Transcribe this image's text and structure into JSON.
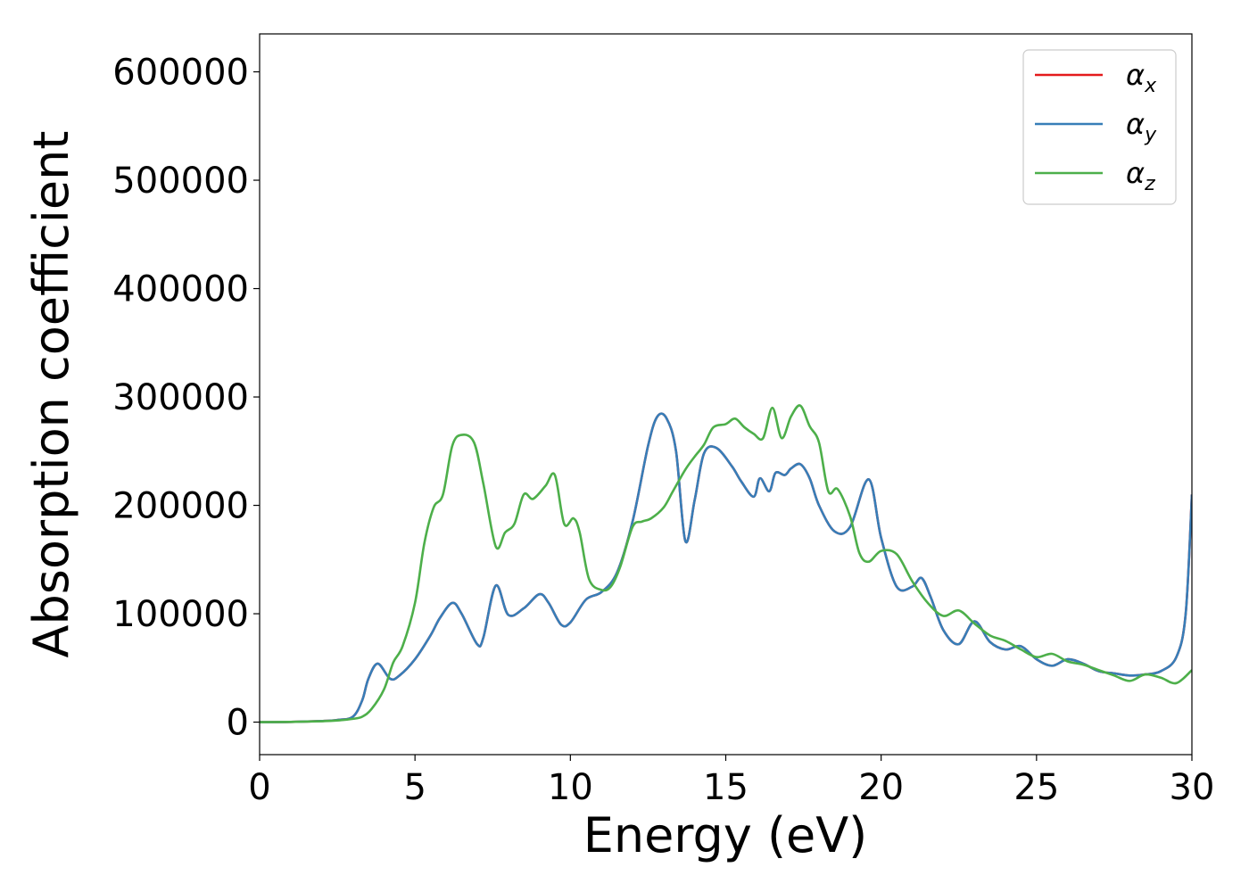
{
  "chart_data": {
    "type": "line",
    "title": "",
    "xlabel": "Energy (eV)",
    "ylabel": "Absorption coefficient",
    "xlim": [
      0,
      30
    ],
    "ylim": [
      -30000,
      635000
    ],
    "xticks": [
      0,
      5,
      10,
      15,
      20,
      25,
      30
    ],
    "yticks": [
      0,
      100000,
      200000,
      300000,
      400000,
      500000,
      600000
    ],
    "xtick_labels": [
      "0",
      "5",
      "10",
      "15",
      "20",
      "25",
      "30"
    ],
    "ytick_labels": [
      "0",
      "100000",
      "200000",
      "300000",
      "400000",
      "500000",
      "600000"
    ],
    "grid": false,
    "legend_position": "top-right",
    "series": [
      {
        "name": "α",
        "subscript": "x",
        "color": "#e41a1c",
        "x": [
          0,
          1,
          2,
          2.5,
          3,
          3.3,
          3.5,
          3.8,
          4.2,
          4.5,
          5,
          5.5,
          5.8,
          6.2,
          6.5,
          7,
          7.2,
          7.6,
          8,
          8.5,
          9,
          9.3,
          9.7,
          10,
          10.5,
          11,
          11.5,
          12,
          12.5,
          12.8,
          13.1,
          13.4,
          13.7,
          14,
          14.3,
          14.7,
          15.2,
          15.5,
          15.9,
          16.1,
          16.4,
          16.6,
          16.9,
          17.1,
          17.4,
          17.7,
          18,
          18.5,
          19,
          19.6,
          20,
          20.5,
          21,
          21.3,
          21.6,
          22,
          22.5,
          23,
          23.5,
          24,
          24.5,
          25,
          25.5,
          26,
          26.5,
          27,
          27.5,
          28,
          28.5,
          29,
          29.5,
          29.8,
          30
        ],
        "values": [
          0,
          200,
          1000,
          2000,
          5000,
          20000,
          40000,
          54000,
          40000,
          43000,
          58000,
          80000,
          96000,
          110000,
          100000,
          72000,
          78000,
          126000,
          99000,
          105000,
          118000,
          110000,
          90000,
          92000,
          113000,
          120000,
          138000,
          185000,
          255000,
          282000,
          280000,
          250000,
          167000,
          205000,
          248000,
          253000,
          236000,
          222000,
          208000,
          225000,
          213000,
          230000,
          228000,
          234000,
          238000,
          225000,
          200000,
          176000,
          180000,
          224000,
          170000,
          125000,
          125000,
          133000,
          115000,
          85000,
          72000,
          93000,
          74000,
          67000,
          70000,
          58000,
          52000,
          58000,
          54000,
          47000,
          45000,
          43000,
          44000,
          47000,
          60000,
          100000,
          210000
        ]
      },
      {
        "name": "α",
        "subscript": "y",
        "color": "#377eb8",
        "x": [
          0,
          1,
          2,
          2.5,
          3,
          3.3,
          3.5,
          3.8,
          4.2,
          4.5,
          5,
          5.5,
          5.8,
          6.2,
          6.5,
          7,
          7.2,
          7.6,
          8,
          8.5,
          9,
          9.3,
          9.7,
          10,
          10.5,
          11,
          11.5,
          12,
          12.5,
          12.8,
          13.1,
          13.4,
          13.7,
          14,
          14.3,
          14.7,
          15.2,
          15.5,
          15.9,
          16.1,
          16.4,
          16.6,
          16.9,
          17.1,
          17.4,
          17.7,
          18,
          18.5,
          19,
          19.6,
          20,
          20.5,
          21,
          21.3,
          21.6,
          22,
          22.5,
          23,
          23.5,
          24,
          24.5,
          25,
          25.5,
          26,
          26.5,
          27,
          27.5,
          28,
          28.5,
          29,
          29.5,
          29.8,
          30
        ],
        "values": [
          0,
          200,
          1000,
          2000,
          5000,
          20000,
          40000,
          54000,
          40000,
          43000,
          58000,
          80000,
          96000,
          110000,
          100000,
          72000,
          78000,
          126000,
          99000,
          105000,
          118000,
          110000,
          90000,
          92000,
          113000,
          120000,
          138000,
          185000,
          255000,
          282000,
          280000,
          250000,
          167000,
          205000,
          248000,
          253000,
          236000,
          222000,
          208000,
          225000,
          213000,
          230000,
          228000,
          234000,
          238000,
          225000,
          200000,
          176000,
          180000,
          224000,
          170000,
          125000,
          125000,
          133000,
          115000,
          85000,
          72000,
          93000,
          74000,
          67000,
          70000,
          58000,
          52000,
          58000,
          54000,
          47000,
          45000,
          43000,
          44000,
          47000,
          60000,
          100000,
          210000
        ]
      },
      {
        "name": "α",
        "subscript": "z",
        "color": "#4daf4a",
        "x": [
          0,
          1,
          2,
          2.5,
          3,
          3.3,
          3.6,
          4,
          4.3,
          4.6,
          5,
          5.3,
          5.6,
          5.9,
          6.2,
          6.5,
          6.9,
          7.2,
          7.6,
          7.9,
          8.2,
          8.5,
          8.8,
          9.2,
          9.5,
          9.8,
          10.1,
          10.3,
          10.6,
          11,
          11.3,
          11.6,
          12,
          12.3,
          12.6,
          13,
          13.3,
          13.7,
          14,
          14.3,
          14.6,
          15,
          15.3,
          15.6,
          15.9,
          16.2,
          16.5,
          16.8,
          17.1,
          17.4,
          17.7,
          18,
          18.3,
          18.6,
          19,
          19.3,
          19.6,
          20,
          20.5,
          21,
          21.5,
          22,
          22.5,
          23,
          23.5,
          24,
          24.5,
          25,
          25.5,
          26,
          26.5,
          27,
          27.5,
          28,
          28.5,
          29,
          29.5,
          30
        ],
        "values": [
          0,
          200,
          800,
          1500,
          3000,
          5000,
          12000,
          30000,
          55000,
          70000,
          110000,
          165000,
          198000,
          210000,
          255000,
          265000,
          258000,
          220000,
          162000,
          175000,
          183000,
          210000,
          206000,
          218000,
          228000,
          183000,
          188000,
          175000,
          132000,
          122000,
          125000,
          143000,
          180000,
          185000,
          188000,
          198000,
          213000,
          233000,
          245000,
          256000,
          272000,
          275000,
          280000,
          272000,
          266000,
          262000,
          290000,
          262000,
          282000,
          292000,
          273000,
          258000,
          213000,
          215000,
          190000,
          156000,
          148000,
          158000,
          155000,
          130000,
          110000,
          98000,
          103000,
          91000,
          80000,
          75000,
          67000,
          60000,
          63000,
          56000,
          53000,
          48000,
          43000,
          38000,
          44000,
          41000,
          36000,
          48000
        ]
      }
    ]
  }
}
